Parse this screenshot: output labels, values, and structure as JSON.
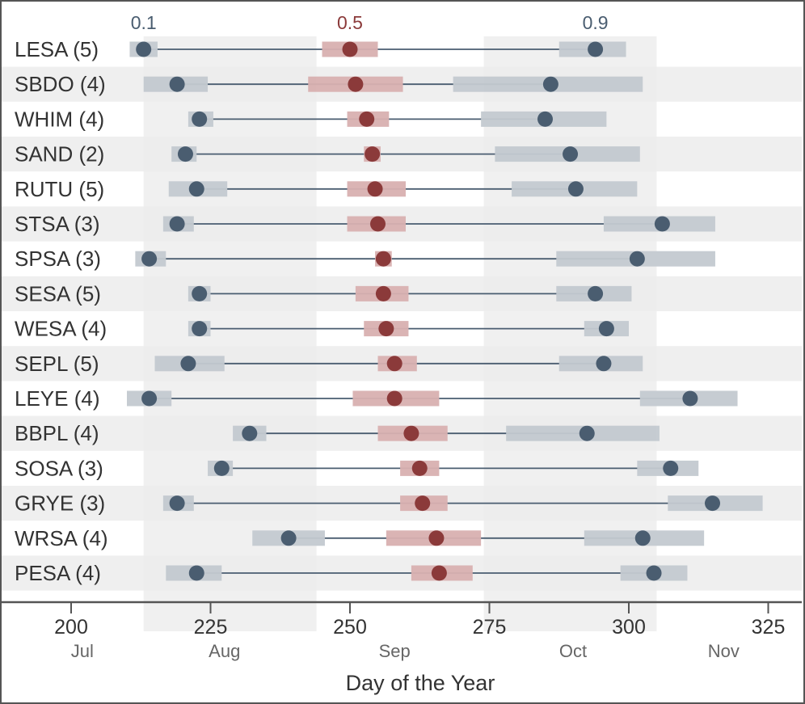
{
  "chart_data": {
    "type": "scatter",
    "title": "",
    "xlabel": "Day of the Year",
    "ylabel": "",
    "xlim": [
      190,
      330
    ],
    "x_ticks": [
      200,
      225,
      250,
      275,
      300,
      325
    ],
    "x_tick_labels": [
      "200",
      "225",
      "250",
      "275",
      "300",
      "325"
    ],
    "months": [
      {
        "label": "Jul",
        "center": 202,
        "band": null
      },
      {
        "label": "Aug",
        "center": 227.5,
        "band": [
          213,
          244
        ]
      },
      {
        "label": "Sep",
        "center": 258,
        "band": [
          244,
          274
        ]
      },
      {
        "label": "Oct",
        "center": 290,
        "band": [
          274,
          305
        ]
      },
      {
        "label": "Nov",
        "center": 317,
        "band": null
      }
    ],
    "quantiles": [
      {
        "name": "0.1",
        "color": "#4a5d70"
      },
      {
        "name": "0.5",
        "color": "#8b3a3a"
      },
      {
        "name": "0.9",
        "color": "#4a5d70"
      }
    ],
    "rows": [
      {
        "label": "LESA (5)",
        "q": [
          [
            213,
            210.5,
            215.5
          ],
          [
            250,
            245,
            255
          ],
          [
            294,
            287.5,
            299.5
          ]
        ]
      },
      {
        "label": "SBDO (4)",
        "q": [
          [
            219,
            213,
            224.5
          ],
          [
            251,
            242.5,
            259.5
          ],
          [
            286,
            268.5,
            302.5
          ]
        ]
      },
      {
        "label": "WHIM (4)",
        "q": [
          [
            223,
            221,
            225.5
          ],
          [
            253,
            249.5,
            257
          ],
          [
            285,
            273.5,
            296
          ]
        ]
      },
      {
        "label": "SAND (2)",
        "q": [
          [
            220.5,
            218,
            222.5
          ],
          [
            254,
            252.5,
            255.5
          ],
          [
            289.5,
            276,
            302
          ]
        ]
      },
      {
        "label": "RUTU (5)",
        "q": [
          [
            222.5,
            217.5,
            228
          ],
          [
            254.5,
            249.5,
            260
          ],
          [
            290.5,
            279,
            301.5
          ]
        ]
      },
      {
        "label": "STSA (3)",
        "q": [
          [
            219,
            216.5,
            222
          ],
          [
            255,
            249.5,
            260
          ],
          [
            306,
            295.5,
            315.5
          ]
        ]
      },
      {
        "label": "SPSA (3)",
        "q": [
          [
            214,
            211.5,
            217
          ],
          [
            256,
            254.5,
            257.5
          ],
          [
            301.5,
            287,
            315.5
          ]
        ]
      },
      {
        "label": "SESA (5)",
        "q": [
          [
            223,
            221,
            225
          ],
          [
            256,
            251,
            260.5
          ],
          [
            294,
            287,
            300.5
          ]
        ]
      },
      {
        "label": "WESA (4)",
        "q": [
          [
            223,
            221,
            225
          ],
          [
            256.5,
            252.5,
            260.5
          ],
          [
            296,
            292,
            300
          ]
        ]
      },
      {
        "label": "SEPL (5)",
        "q": [
          [
            221,
            215,
            227.5
          ],
          [
            258,
            255,
            262
          ],
          [
            295.5,
            287.5,
            302.5
          ]
        ]
      },
      {
        "label": "LEYE (4)",
        "q": [
          [
            214,
            210,
            218
          ],
          [
            258,
            250.5,
            266
          ],
          [
            311,
            302,
            319.5
          ]
        ]
      },
      {
        "label": "BBPL (4)",
        "q": [
          [
            232,
            229,
            235
          ],
          [
            261,
            255,
            267.5
          ],
          [
            292.5,
            278,
            305.5
          ]
        ]
      },
      {
        "label": "SOSA (3)",
        "q": [
          [
            227,
            224.5,
            229
          ],
          [
            262.5,
            259,
            266
          ],
          [
            307.5,
            301.5,
            312.5
          ]
        ]
      },
      {
        "label": "GRYE (3)",
        "q": [
          [
            219,
            216.5,
            222
          ],
          [
            263,
            259,
            267.5
          ],
          [
            315,
            307,
            324
          ]
        ]
      },
      {
        "label": "WRSA (4)",
        "q": [
          [
            239,
            232.5,
            245.5
          ],
          [
            265.5,
            256.5,
            273.5
          ],
          [
            302.5,
            292,
            313.5
          ]
        ]
      },
      {
        "label": "PESA (4)",
        "q": [
          [
            222.5,
            217,
            227
          ],
          [
            266,
            261,
            272
          ],
          [
            304.5,
            298.5,
            310.5
          ]
        ]
      }
    ],
    "grid": false,
    "legend_position": "top"
  }
}
